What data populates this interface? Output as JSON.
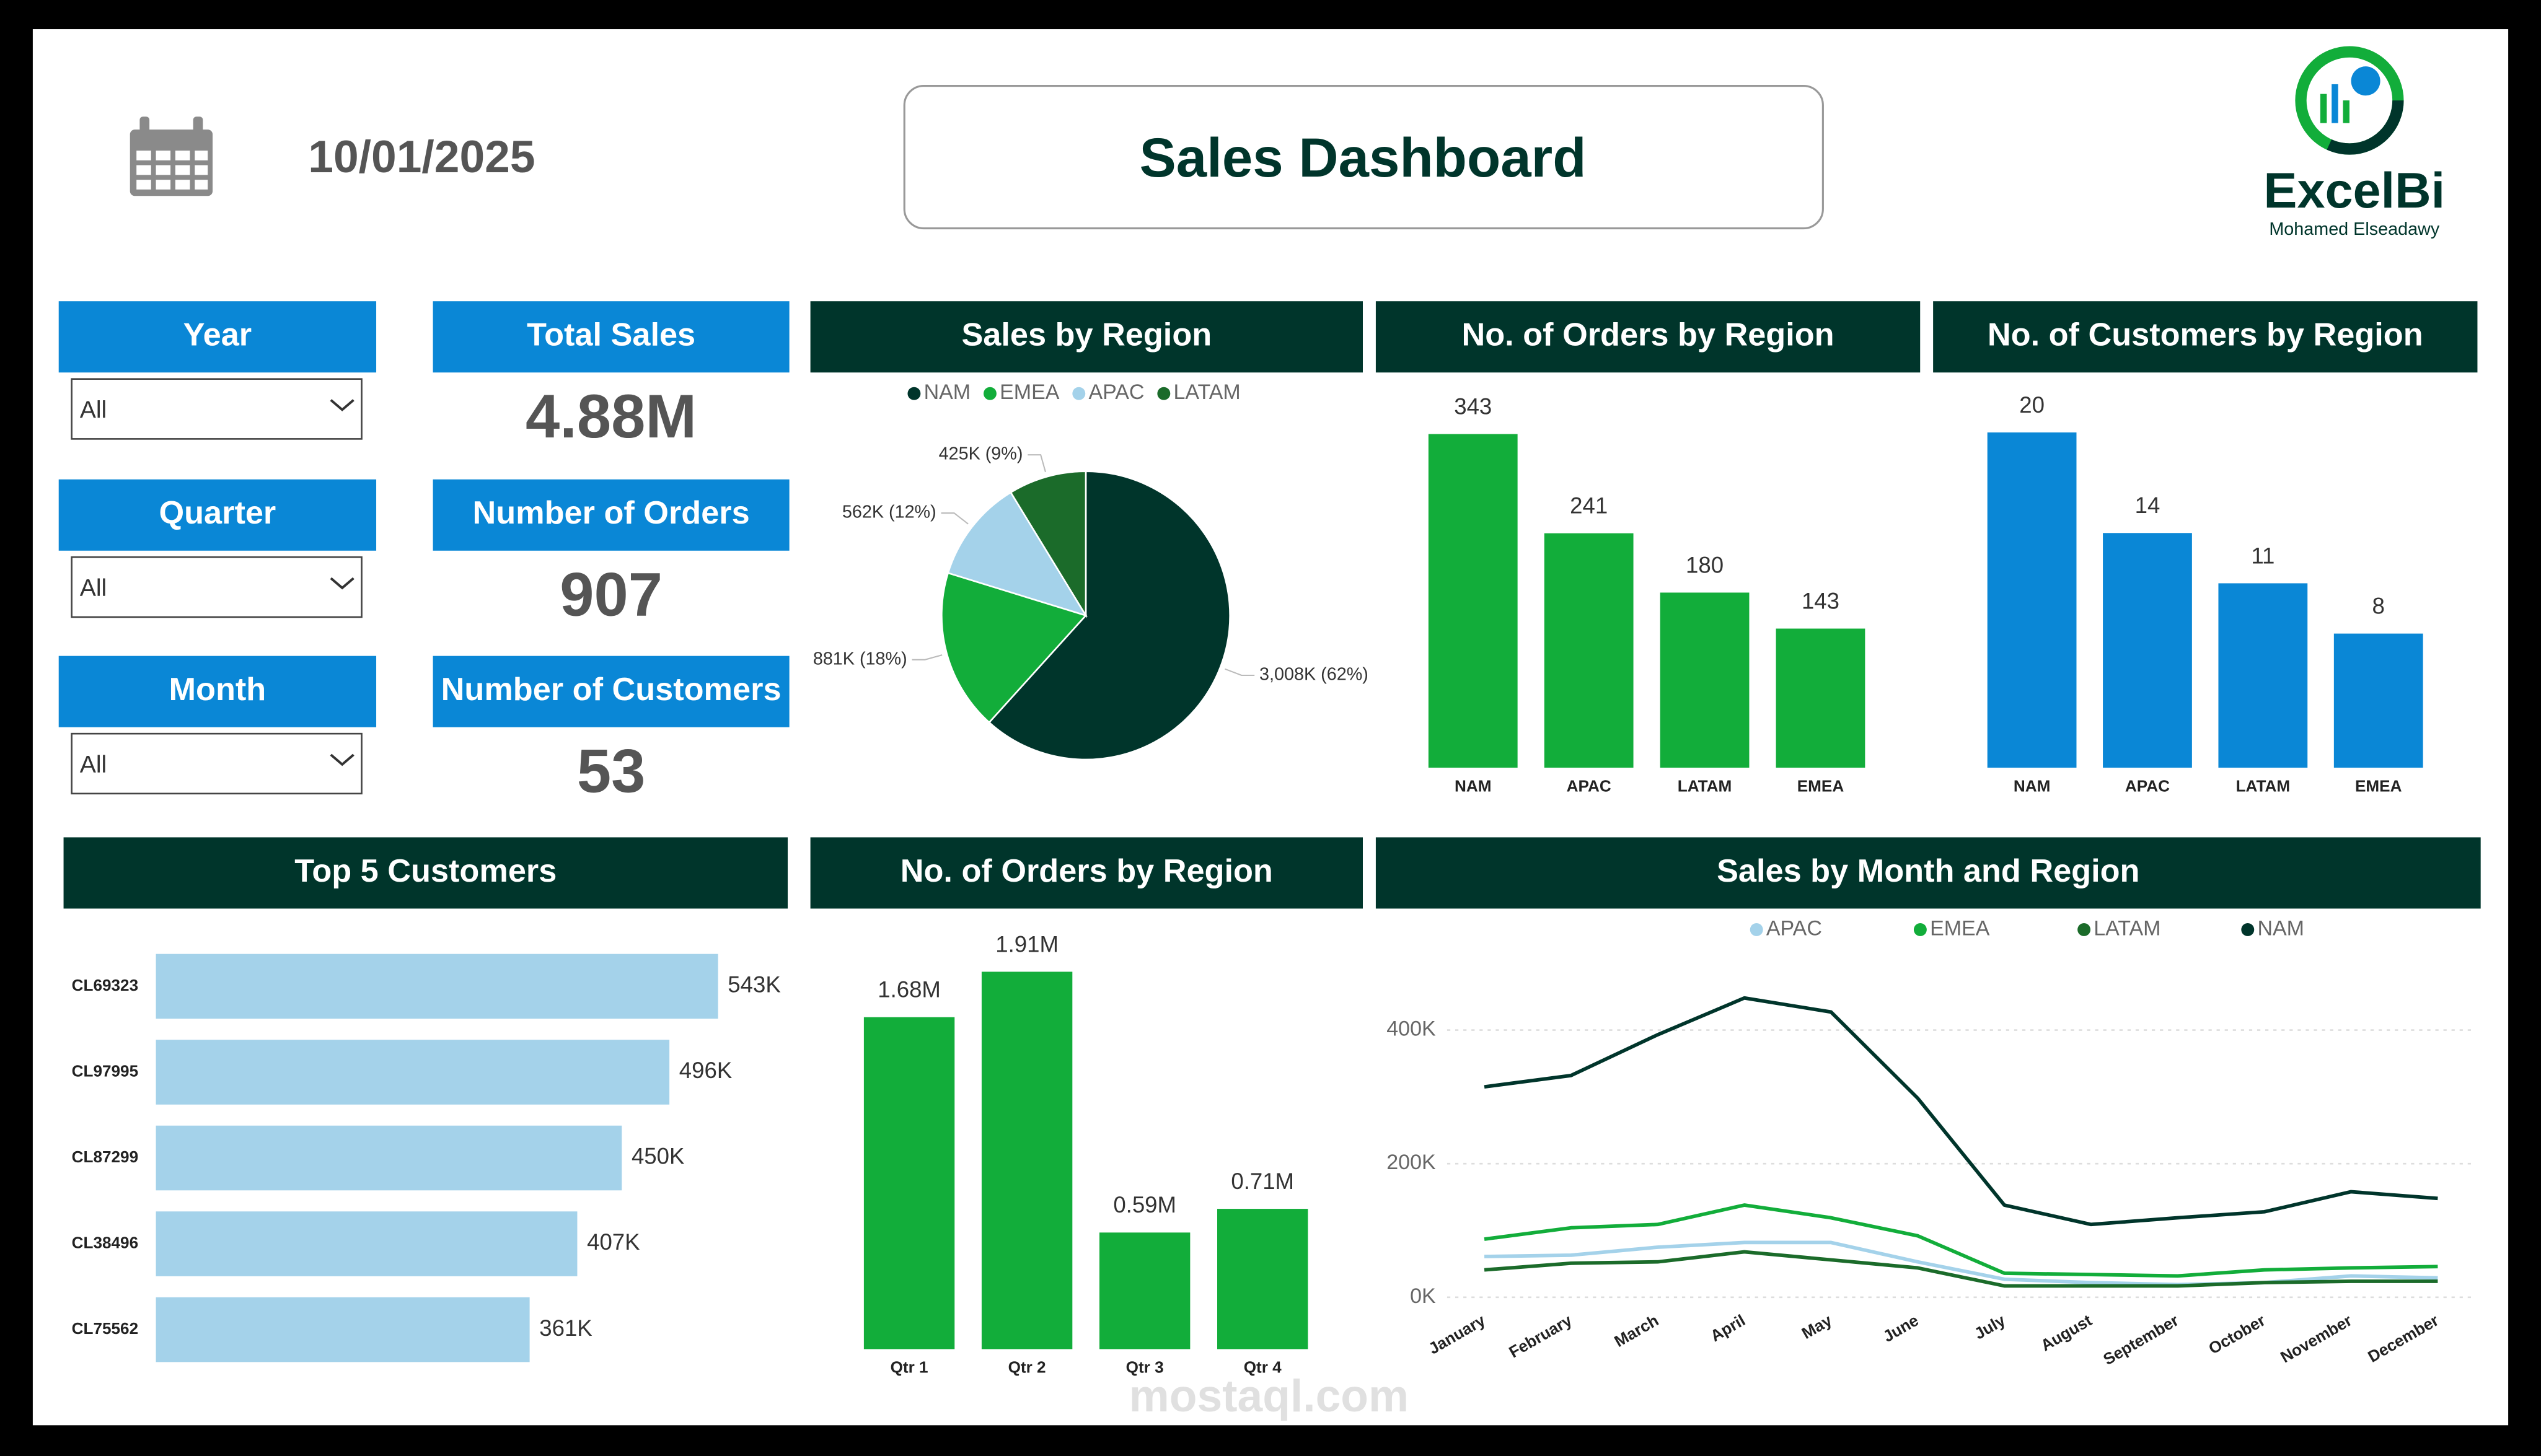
{
  "header": {
    "date": "10/01/2025",
    "title": "Sales Dashboard",
    "brand": "ExcelBi",
    "author": "Mohamed Elseadawy"
  },
  "filters": [
    {
      "label": "Year",
      "value": "All"
    },
    {
      "label": "Quarter",
      "value": "All"
    },
    {
      "label": "Month",
      "value": "All"
    }
  ],
  "kpis": [
    {
      "label": "Total Sales",
      "value": "4.88M"
    },
    {
      "label": "Number of Orders",
      "value": 907
    },
    {
      "label": "Number of Customers",
      "value": 53
    }
  ],
  "watermark": "mostaql.com",
  "chart_data": [
    {
      "type": "pie",
      "title": "Sales by Region",
      "categories": [
        "NAM",
        "EMEA",
        "APAC",
        "LATAM"
      ],
      "values": [
        3008,
        881,
        562,
        425
      ],
      "value_labels": [
        "3,008K (62%)",
        "881K (18%)",
        "562K (12%)",
        "425K (9%)"
      ],
      "colors": [
        "#00352b",
        "#12ad3a",
        "#a4d2ea",
        "#1b6b2a"
      ]
    },
    {
      "type": "bar",
      "title": "No. of Orders by Region",
      "categories": [
        "NAM",
        "APAC",
        "LATAM",
        "EMEA"
      ],
      "values": [
        343,
        241,
        180,
        143
      ],
      "color": "#12ad3a"
    },
    {
      "type": "bar",
      "title": "No. of Customers by Region",
      "categories": [
        "NAM",
        "APAC",
        "LATAM",
        "EMEA"
      ],
      "values": [
        20,
        14,
        11,
        8
      ],
      "color": "#0a87d6"
    },
    {
      "type": "barh",
      "title": "Top 5 Customers",
      "categories": [
        "CL69323",
        "CL97995",
        "CL87299",
        "CL38496",
        "CL75562"
      ],
      "values": [
        543,
        496,
        450,
        407,
        361
      ],
      "value_labels": [
        "543K",
        "496K",
        "450K",
        "407K",
        "361K"
      ],
      "color": "#a4d2ea"
    },
    {
      "type": "bar",
      "title": "No. of Orders by Region",
      "categories": [
        "Qtr 1",
        "Qtr 2",
        "Qtr 3",
        "Qtr 4"
      ],
      "values": [
        1.68,
        1.91,
        0.59,
        0.71
      ],
      "value_labels": [
        "1.68M",
        "1.91M",
        "0.59M",
        "0.71M"
      ],
      "color": "#12ad3a"
    },
    {
      "type": "line",
      "title": "Sales by Month and Region",
      "categories": [
        "January",
        "February",
        "March",
        "April",
        "May",
        "June",
        "July",
        "August",
        "September",
        "October",
        "November",
        "December"
      ],
      "series": [
        {
          "name": "APAC",
          "color": "#a4d2ea",
          "values": [
            61000,
            63000,
            75000,
            82000,
            82000,
            53000,
            27000,
            22000,
            19000,
            22000,
            32000,
            29000
          ]
        },
        {
          "name": "EMEA",
          "color": "#12ad3a",
          "values": [
            87000,
            104000,
            109000,
            138000,
            119000,
            92000,
            36000,
            34000,
            32000,
            41000,
            44000,
            46000
          ]
        },
        {
          "name": "LATAM",
          "color": "#1b6b2a",
          "values": [
            41000,
            51000,
            53000,
            68000,
            56000,
            44000,
            17000,
            17000,
            17000,
            22000,
            24000,
            24000
          ]
        },
        {
          "name": "NAM",
          "color": "#00352b",
          "values": [
            315000,
            332000,
            393000,
            448000,
            427000,
            298000,
            138000,
            109000,
            119000,
            128000,
            158000,
            148000
          ]
        }
      ],
      "ylim": [
        0,
        480000
      ],
      "yticks": [
        {
          "value": 0,
          "label": "0K"
        },
        {
          "value": 200000,
          "label": "200K"
        },
        {
          "value": 400000,
          "label": "400K"
        }
      ],
      "grid": true
    }
  ]
}
